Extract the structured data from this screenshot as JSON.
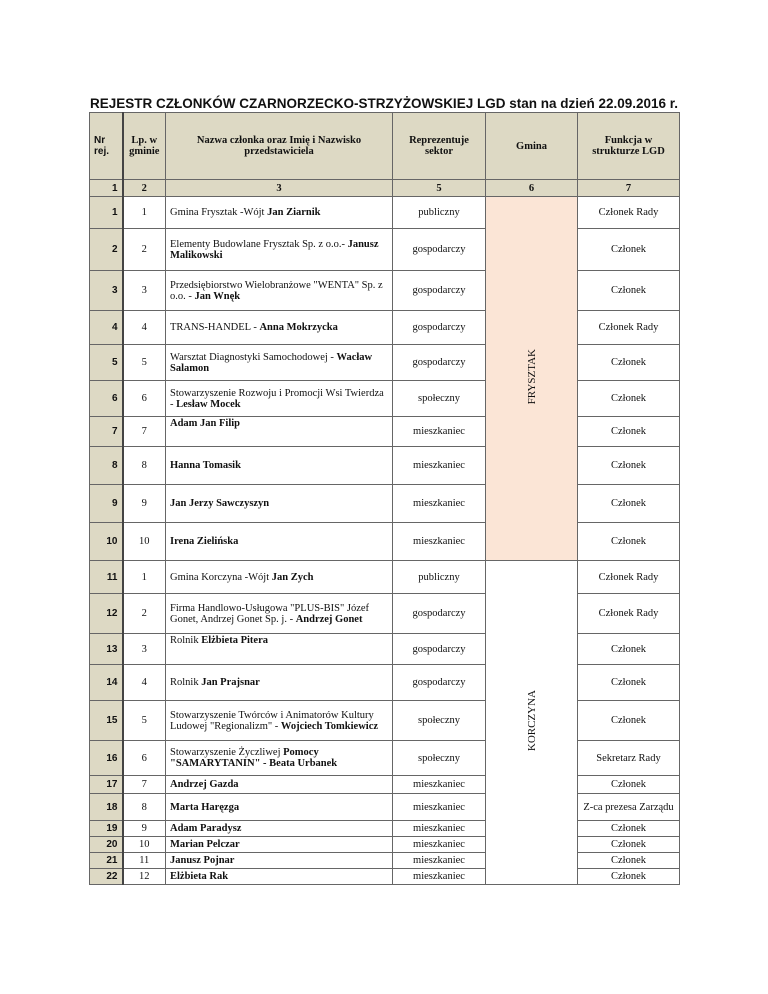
{
  "title": "REJESTR CZŁONKÓW CZARNORZECKO-STRZYŻOWSKIEJ LGD  stan na dzień 22.09.2016 r.",
  "headers": {
    "nr": "Nr rej.",
    "lp": "Lp. w gminie",
    "name": "Nazwa członka oraz Imię i Nazwisko przedstawiciela",
    "sector": "Reprezentuje sektor",
    "gmina": "Gmina",
    "function": "Funkcja w strukturze LGD"
  },
  "column_numbers": [
    "1",
    "2",
    "3",
    "5",
    "6",
    "7"
  ],
  "colors": {
    "header_bg": "#ddd9c4",
    "frysztak_bg": "#fbe5d6"
  },
  "gminas": [
    "FRYSZTAK",
    "KORCZYNA"
  ],
  "rows": [
    {
      "nr": "1",
      "lp": "1",
      "pre": "Gmina Frysztak -Wójt ",
      "bold": "Jan Ziarnik",
      "sector": "publiczny",
      "function": "Członek Rady"
    },
    {
      "nr": "2",
      "lp": "2",
      "pre": "Elementy Budowlane Frysztak Sp. z o.o.- ",
      "bold": "Janusz Malikowski",
      "sector": "gospodarczy",
      "function": "Członek"
    },
    {
      "nr": "3",
      "lp": "3",
      "pre": "Przedsiębiorstwo Wielobranżowe \"WENTA\" Sp. z o.o. - ",
      "bold": "Jan Wnęk",
      "sector": "gospodarczy",
      "function": "Członek"
    },
    {
      "nr": "4",
      "lp": "4",
      "pre": "TRANS-HANDEL - ",
      "bold": "Anna Mokrzycka",
      "sector": "gospodarczy",
      "function": "Członek Rady"
    },
    {
      "nr": "5",
      "lp": "5",
      "pre": "Warsztat Diagnostyki Samochodowej - ",
      "bold": "Wacław Salamon",
      "sector": "gospodarczy",
      "function": "Członek"
    },
    {
      "nr": "6",
      "lp": "6",
      "pre": "Stowarzyszenie Rozwoju i Promocji Wsi Twierdza - ",
      "bold": "Lesław Mocek",
      "sector": "społeczny",
      "function": "Członek"
    },
    {
      "nr": "7",
      "lp": "7",
      "pre": "",
      "bold": "Adam Jan Filip",
      "sector": "mieszkaniec",
      "function": "Członek"
    },
    {
      "nr": "8",
      "lp": "8",
      "pre": "",
      "bold": "Hanna Tomasik",
      "sector": "mieszkaniec",
      "function": "Członek"
    },
    {
      "nr": "9",
      "lp": "9",
      "pre": "",
      "bold": "Jan Jerzy Sawczyszyn",
      "sector": "mieszkaniec",
      "function": "Członek"
    },
    {
      "nr": "10",
      "lp": "10",
      "pre": "",
      "bold": "Irena Zielińska",
      "sector": "mieszkaniec",
      "function": "Członek"
    },
    {
      "nr": "11",
      "lp": "1",
      "pre": "Gmina Korczyna -Wójt ",
      "bold": "Jan Zych",
      "sector": "publiczny",
      "function": "Członek Rady"
    },
    {
      "nr": "12",
      "lp": "2",
      "pre": "Firma Handlowo-Usługowa \"PLUS-BIS\" Józef Gonet, Andrzej Gonet Sp. j. -  ",
      "bold": "Andrzej Gonet",
      "sector": "gospodarczy",
      "function": "Członek Rady"
    },
    {
      "nr": "13",
      "lp": "3",
      "pre": "Rolnik ",
      "bold": "Elżbieta Pitera",
      "sector": "gospodarczy",
      "function": "Członek"
    },
    {
      "nr": "14",
      "lp": "4",
      "pre": "Rolnik ",
      "bold": "Jan Prajsnar",
      "sector": "gospodarczy",
      "function": "Członek"
    },
    {
      "nr": "15",
      "lp": "5",
      "pre": "Stowarzyszenie Twórców i Animatorów Kultury Ludowej \"Regionalizm\" - ",
      "bold": "Wojciech Tomkiewicz",
      "sector": "społeczny",
      "function": "Członek"
    },
    {
      "nr": "16",
      "lp": "6",
      "pre": "Stowarzyszenie Życzliwej ",
      "bold": "Pomocy \"SAMARYTANIN\" - Beata Urbanek",
      "sector": "społeczny",
      "function": "Sekretarz Rady"
    },
    {
      "nr": "17",
      "lp": "7",
      "pre": "",
      "bold": "Andrzej Gazda",
      "sector": "mieszkaniec",
      "function": "Członek"
    },
    {
      "nr": "18",
      "lp": "8",
      "pre": "",
      "bold": " Marta Haręzga",
      "sector": "mieszkaniec",
      "function": "Z-ca prezesa Zarządu"
    },
    {
      "nr": "19",
      "lp": "9",
      "pre": "",
      "bold": "Adam Paradysz",
      "sector": "mieszkaniec",
      "function": "Członek"
    },
    {
      "nr": "20",
      "lp": "10",
      "pre": "",
      "bold": "Marian Pelczar",
      "sector": "mieszkaniec",
      "function": "Członek"
    },
    {
      "nr": "21",
      "lp": "11",
      "pre": "",
      "bold": "Janusz Pojnar",
      "sector": "mieszkaniec",
      "function": "Członek"
    },
    {
      "nr": "22",
      "lp": "12",
      "pre": "",
      "bold": "Elżbieta Rak",
      "sector": "mieszkaniec",
      "function": "Członek"
    }
  ]
}
